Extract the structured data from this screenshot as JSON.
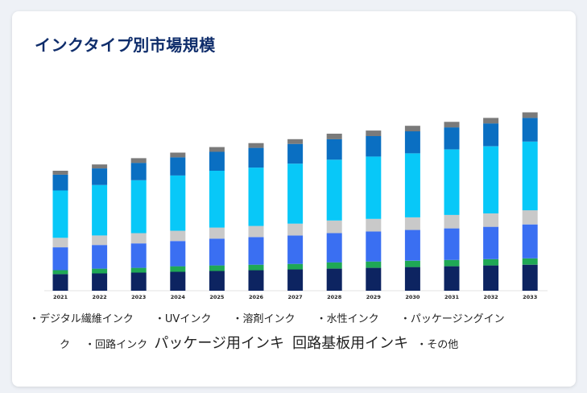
{
  "title": "インクタイプ別市場規模",
  "chart_data": {
    "type": "bar",
    "stacked": true,
    "categories": [
      "2021",
      "2022",
      "2023",
      "2024",
      "2025",
      "2026",
      "2027",
      "2028",
      "2029",
      "2030",
      "2031",
      "2032",
      "2033"
    ],
    "series": [
      {
        "name": "デジタル繊維インク",
        "color": "#0d2461",
        "values": [
          21,
          22,
          23,
          24,
          25,
          26,
          27,
          28,
          29,
          30,
          31,
          32,
          33
        ]
      },
      {
        "name": "UVインク",
        "color": "#1fa855",
        "values": [
          5,
          6,
          6,
          7,
          7,
          7,
          7,
          8,
          8,
          8,
          8,
          8,
          8
        ]
      },
      {
        "name": "溶剤インク",
        "color": "#3a6ff2",
        "values": [
          29,
          30,
          31,
          32,
          34,
          35,
          36,
          37,
          38,
          39,
          40,
          41,
          43
        ]
      },
      {
        "name": "水性インク",
        "color": "#c9c9c9",
        "values": [
          12,
          12,
          13,
          13,
          14,
          14,
          15,
          16,
          16,
          16,
          17,
          17,
          18
        ]
      },
      {
        "name": "パッケージングインク",
        "color": "#08c8f8",
        "values": [
          60,
          64,
          67,
          70,
          72,
          74,
          76,
          77,
          79,
          81,
          83,
          85,
          87
        ]
      },
      {
        "name": "回路インク",
        "color": "#0a6fc2",
        "values": [
          20,
          21,
          22,
          23,
          24,
          25,
          25,
          26,
          26,
          28,
          28,
          29,
          30
        ]
      },
      {
        "name": "その他",
        "color": "#7a7a7a",
        "values": [
          5,
          5,
          6,
          6,
          6,
          6,
          6,
          7,
          7,
          7,
          7,
          7,
          7
        ]
      }
    ],
    "ylim": [
      0,
      250
    ]
  },
  "legend_text": {
    "digital_textile": "デジタル繊維インク",
    "uv": "UVインク",
    "solvent": "溶剤インク",
    "water": "水性インク",
    "packaging": "パッケージングイン",
    "packaging_cont": "ク",
    "circuit": "回路インク",
    "extra1": "パッケージ用インキ",
    "extra2": "回路基板用インキ",
    "other": "その他"
  }
}
